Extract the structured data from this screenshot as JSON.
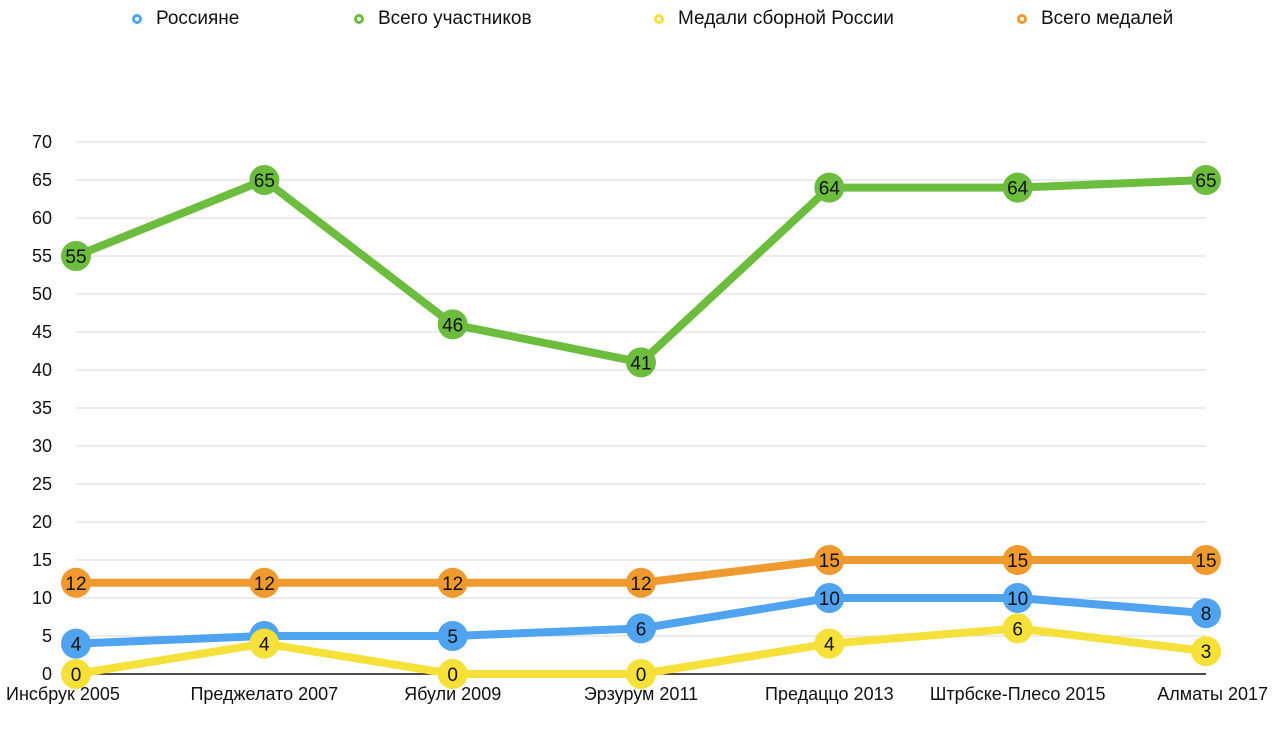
{
  "chart_data": {
    "type": "line",
    "categories": [
      "Инсбрук 2005",
      "Преджелато 2007",
      "Ябули 2009",
      "Эрзурум 2011",
      "Предаццо 2013",
      "Штрбске-Плесо 2015",
      "Алматы 2017"
    ],
    "series": [
      {
        "name": "Россияне",
        "color": "#4fa3ef",
        "values": [
          4,
          5,
          5,
          6,
          10,
          10,
          8
        ]
      },
      {
        "name": "Всего участников",
        "color": "#6cbd3e",
        "values": [
          55,
          65,
          46,
          41,
          64,
          64,
          65
        ]
      },
      {
        "name": "Медали сборной России",
        "color": "#f6e13a",
        "values": [
          0,
          4,
          0,
          0,
          4,
          6,
          3
        ]
      },
      {
        "name": "Всего медалей",
        "color": "#ee9a2e",
        "values": [
          12,
          12,
          12,
          12,
          15,
          15,
          15
        ]
      }
    ],
    "ylim": [
      0,
      70
    ],
    "yticks": [
      0,
      5,
      10,
      15,
      20,
      25,
      30,
      35,
      40,
      45,
      50,
      55,
      60,
      65,
      70
    ],
    "grid": true,
    "legend_position": "top"
  }
}
